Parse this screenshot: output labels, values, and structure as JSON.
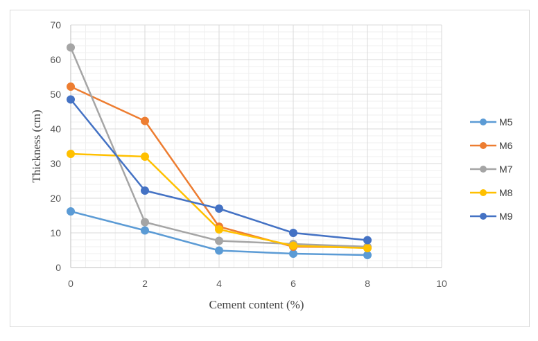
{
  "chart_data": {
    "type": "line",
    "title": "",
    "xlabel": "Cement content (%)",
    "ylabel": "Thickness (cm)",
    "xlim": [
      0,
      10
    ],
    "ylim": [
      0,
      70
    ],
    "xticks": [
      0,
      2,
      4,
      6,
      8,
      10
    ],
    "yticks": [
      0,
      10,
      20,
      30,
      40,
      50,
      60,
      70
    ],
    "grid": true,
    "legend_position": "right",
    "x": [
      0,
      2,
      4,
      6,
      8
    ],
    "series": [
      {
        "name": "M5",
        "color": "#5B9BD5",
        "values": [
          16.2,
          10.7,
          4.9,
          4.0,
          3.6
        ]
      },
      {
        "name": "M6",
        "color": "#ED7D31",
        "values": [
          52.2,
          42.3,
          11.8,
          6.0,
          5.8
        ]
      },
      {
        "name": "M7",
        "color": "#A5A5A5",
        "values": [
          63.5,
          13.1,
          7.7,
          6.8,
          6.0
        ]
      },
      {
        "name": "M8",
        "color": "#FFC000",
        "values": [
          32.8,
          32.0,
          11.0,
          6.3,
          5.6
        ]
      },
      {
        "name": "M9",
        "color": "#4472C4",
        "values": [
          48.5,
          22.2,
          17.0,
          10.0,
          7.9
        ]
      }
    ]
  }
}
